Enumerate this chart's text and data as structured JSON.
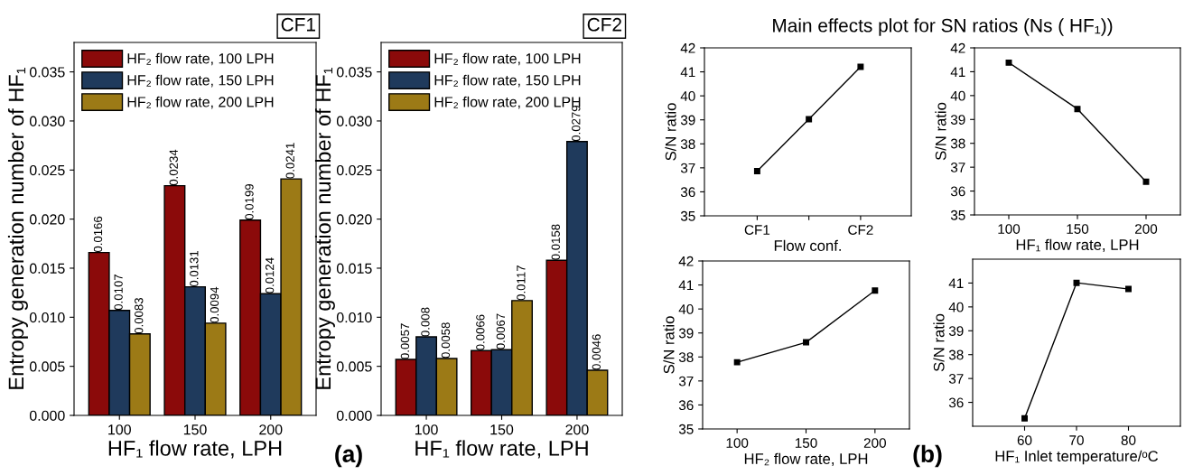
{
  "chart_data": [
    {
      "type": "bar",
      "title": "CF1",
      "xlabel": "HF₁ flow rate, LPH",
      "ylabel": "Entropy generation number of HF₁",
      "categories": [
        "100",
        "150",
        "200"
      ],
      "series": [
        {
          "name": "HF₂ flow rate, 100 LPH",
          "color": "#8b0a0a",
          "values": [
            0.0166,
            0.0234,
            0.0199
          ]
        },
        {
          "name": "HF₂ flow rate, 150 LPH",
          "color": "#1f3a5c",
          "values": [
            0.0107,
            0.0131,
            0.0124
          ]
        },
        {
          "name": "HF₂ flow rate, 200 LPH",
          "color": "#9c7a16",
          "values": [
            0.0083,
            0.0094,
            0.0241
          ]
        }
      ],
      "ylim": [
        0,
        0.038
      ],
      "yticks": [
        {
          "value": 0,
          "label": "0.000"
        },
        {
          "value": 0.005,
          "label": "0.005"
        },
        {
          "value": 0.01,
          "label": "0.010"
        },
        {
          "value": 0.015,
          "label": "0.015"
        },
        {
          "value": 0.02,
          "label": "0.020"
        },
        {
          "value": 0.025,
          "label": "0.025"
        },
        {
          "value": 0.03,
          "label": "0.030"
        },
        {
          "value": 0.035,
          "label": "0.035"
        }
      ],
      "data_labels": true,
      "legend": "top left",
      "grid": false,
      "annotations": [
        "(a)"
      ]
    },
    {
      "type": "bar",
      "title": "CF2",
      "xlabel": "HF₁ flow rate, LPH",
      "ylabel": "Entropy generation number of HF₁",
      "categories": [
        "100",
        "150",
        "200"
      ],
      "series": [
        {
          "name": "HF₂ flow rate, 100 LPH",
          "color": "#8b0a0a",
          "values": [
            0.0057,
            0.0066,
            0.0158
          ]
        },
        {
          "name": "HF₂ flow rate, 150 LPH",
          "color": "#1f3a5c",
          "values": [
            0.008,
            0.0067,
            0.0279
          ]
        },
        {
          "name": "HF₂ flow rate, 200 LPH",
          "color": "#9c7a16",
          "values": [
            0.0058,
            0.0117,
            0.0046
          ]
        }
      ],
      "ylim": [
        0,
        0.038
      ],
      "yticks": [
        {
          "value": 0,
          "label": "0.000"
        },
        {
          "value": 0.005,
          "label": "0.005"
        },
        {
          "value": 0.01,
          "label": "0.010"
        },
        {
          "value": 0.015,
          "label": "0.015"
        },
        {
          "value": 0.02,
          "label": "0.020"
        },
        {
          "value": 0.025,
          "label": "0.025"
        },
        {
          "value": 0.03,
          "label": "0.030"
        },
        {
          "value": 0.035,
          "label": "0.035"
        }
      ],
      "data_labels": true,
      "legend": "top left",
      "grid": false
    },
    {
      "type": "line",
      "title": "Main effects plot for SN ratios (Ns ( HF₁))",
      "xlabel": "Flow conf.",
      "ylabel": "S/N ratio",
      "categories": [
        "CF1",
        null,
        "CF2"
      ],
      "series": [
        {
          "color": "#000000",
          "values": [
            36.86,
            39.03,
            41.21
          ]
        }
      ],
      "ylim": [
        35,
        42
      ],
      "yticks": [
        35,
        36,
        37,
        38,
        39,
        40,
        41,
        42
      ],
      "marker": "square",
      "line_style": "solid",
      "grid": false,
      "legend": false,
      "annotations": [
        "(b)"
      ]
    },
    {
      "type": "line",
      "xlabel": "HF₁ flow rate, LPH",
      "ylabel": "S/N ratio",
      "x": [
        100,
        150,
        200
      ],
      "series": [
        {
          "color": "#000000",
          "values": [
            41.38,
            39.44,
            36.39
          ]
        }
      ],
      "xlim": [
        75,
        225
      ],
      "xticks": [
        100,
        150,
        200
      ],
      "ylim": [
        35,
        42
      ],
      "yticks": [
        35,
        36,
        37,
        38,
        39,
        40,
        41,
        42
      ],
      "marker": "square",
      "line_style": "solid",
      "grid": false,
      "legend": false
    },
    {
      "type": "line",
      "xlabel": "HF₂ flow rate, LPH",
      "ylabel": "S/N ratio",
      "x": [
        100,
        150,
        200
      ],
      "series": [
        {
          "color": "#000000",
          "values": [
            37.78,
            38.61,
            40.77
          ]
        }
      ],
      "xlim": [
        75,
        225
      ],
      "xticks": [
        100,
        150,
        200
      ],
      "ylim": [
        35,
        42
      ],
      "yticks": [
        35,
        36,
        37,
        38,
        39,
        40,
        41,
        42
      ],
      "marker": "square",
      "line_style": "solid",
      "grid": false,
      "legend": false
    },
    {
      "type": "line",
      "xlabel": "HF₁ Inlet temperature/ᵒC",
      "ylabel": "S/N ratio",
      "x": [
        60,
        70,
        80
      ],
      "series": [
        {
          "color": "#000000",
          "values": [
            35.33,
            41.01,
            40.75
          ]
        }
      ],
      "xlim": [
        50,
        90
      ],
      "xticks": [
        60,
        70,
        80
      ],
      "ylim": [
        35,
        42
      ],
      "yticks": [
        36,
        37,
        38,
        39,
        40,
        41
      ],
      "marker": "square",
      "line_style": "solid",
      "grid": false,
      "legend": false
    }
  ]
}
